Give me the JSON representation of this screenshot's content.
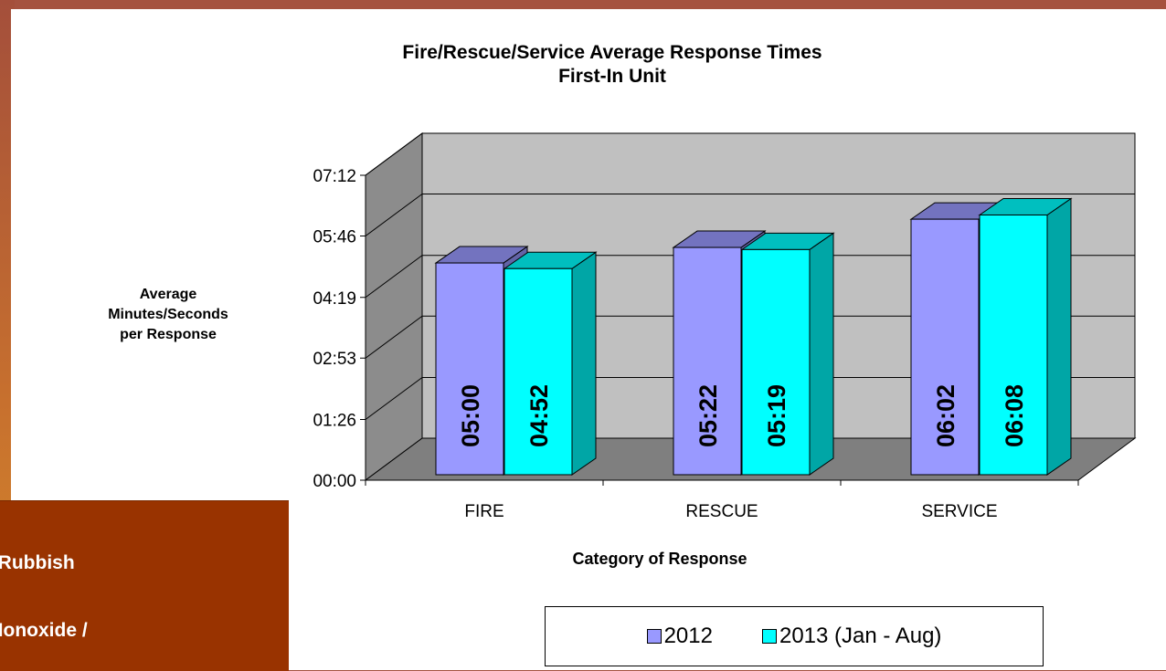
{
  "slide": {
    "behind_lines": [
      "/ Rubbish",
      "Monoxide /"
    ]
  },
  "chart_data": {
    "type": "bar",
    "title": "Fire/Rescue/Service Average Response Times",
    "subtitle": "First-In Unit",
    "ylabel_lines": [
      "Average",
      "Minutes/Seconds",
      "per Response"
    ],
    "xlabel": "Category of Response",
    "categories": [
      "FIRE",
      "RESCUE",
      "SERVICE"
    ],
    "y_ticks": [
      "00:00",
      "01:26",
      "02:53",
      "04:19",
      "05:46",
      "07:12"
    ],
    "y_tick_values": [
      0,
      86,
      173,
      259,
      346,
      432
    ],
    "ylim": [
      0,
      432
    ],
    "y_unit": "seconds",
    "grid": true,
    "three_d": true,
    "legend_position": "bottom",
    "series": [
      {
        "name": "2012",
        "color": "#9999ff",
        "values": [
          300,
          322,
          362
        ],
        "labels": [
          "05:00",
          "05:22",
          "06:02"
        ]
      },
      {
        "name": "2013 (Jan - Aug)",
        "color": "#00ffff",
        "values": [
          292,
          319,
          368
        ],
        "labels": [
          "04:52",
          "05:19",
          "06:08"
        ]
      }
    ]
  }
}
